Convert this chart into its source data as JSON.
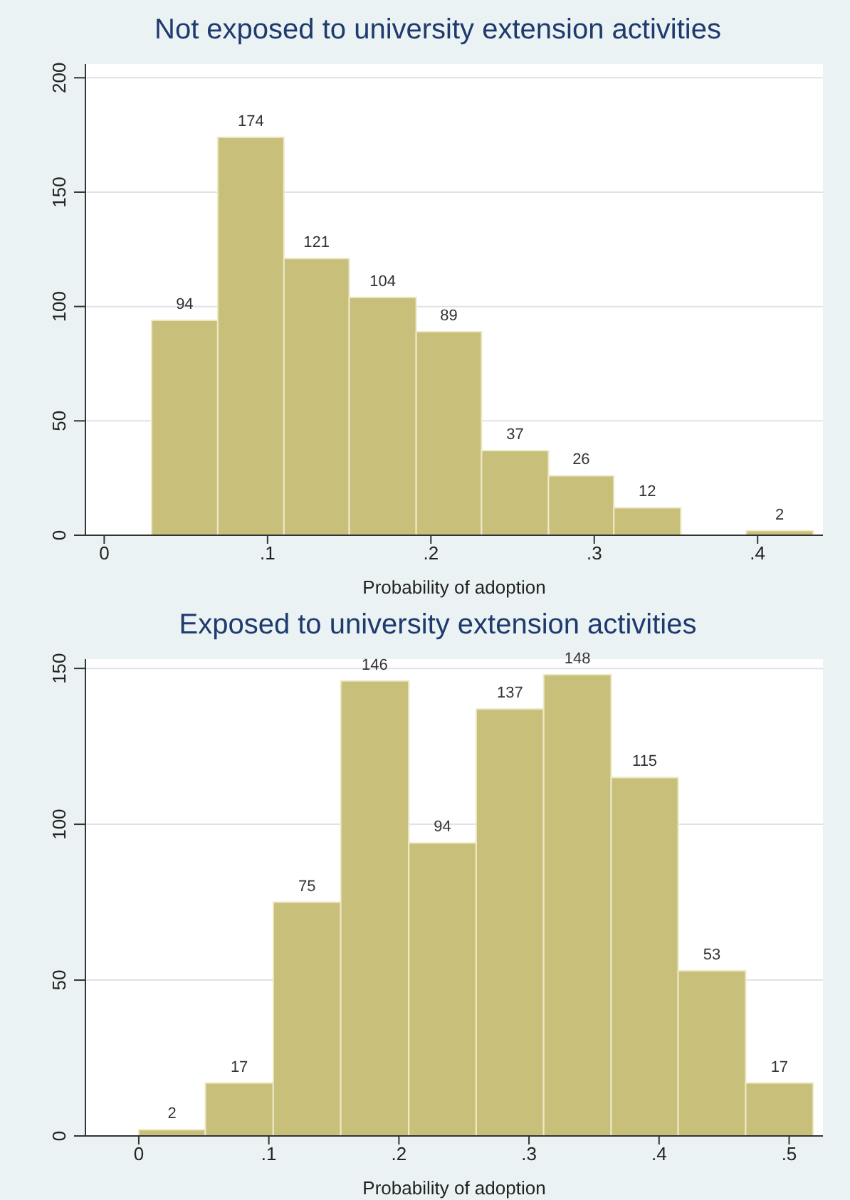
{
  "chart_data": [
    {
      "type": "histogram",
      "title": "Not exposed to university extension activities",
      "xlabel": "Probability of adoption",
      "bins": [
        0.029,
        0.0695,
        0.11,
        0.15,
        0.191,
        0.231,
        0.272,
        0.312,
        0.353,
        0.393,
        0.434
      ],
      "values": [
        94,
        174,
        121,
        104,
        89,
        37,
        26,
        12,
        0,
        2
      ],
      "value_labels": [
        "94",
        "174",
        "121",
        "104",
        "89",
        "37",
        "26",
        "12",
        null,
        "2"
      ],
      "color": "#c8c07a",
      "xlim": [
        -0.0115,
        0.44
      ],
      "xticks": [
        0,
        {
          "value": 0.1,
          "label": ".1"
        },
        {
          "value": 0.2,
          "label": ".2"
        },
        {
          "value": 0.3,
          "label": ".3"
        },
        {
          "value": 0.4,
          "label": ".4"
        }
      ],
      "ylim": [
        0,
        206
      ],
      "yticks": [
        0,
        50,
        100,
        150,
        200
      ],
      "grid": "y"
    },
    {
      "type": "histogram",
      "title": "Exposed to university extension activities",
      "xlabel": "Probability of adoption",
      "bins": [
        0,
        0.0512,
        0.1034,
        0.1553,
        0.2076,
        0.2594,
        0.3113,
        0.3632,
        0.4147,
        0.4666,
        0.5185
      ],
      "values": [
        2,
        17,
        75,
        146,
        94,
        137,
        148,
        115,
        53,
        17
      ],
      "data_labels": true,
      "color": "#c8c07a",
      "xlim": [
        -0.041,
        0.526
      ],
      "xticks": [
        0,
        {
          "value": 0.1,
          "label": ".1"
        },
        {
          "value": 0.2,
          "label": ".2"
        },
        {
          "value": 0.3,
          "label": ".3"
        },
        {
          "value": 0.4,
          "label": ".4"
        },
        {
          "value": 0.5,
          "label": ".5"
        }
      ],
      "ylim": [
        0,
        153
      ],
      "yticks": [
        0,
        50,
        100,
        150
      ],
      "grid": "y"
    }
  ]
}
